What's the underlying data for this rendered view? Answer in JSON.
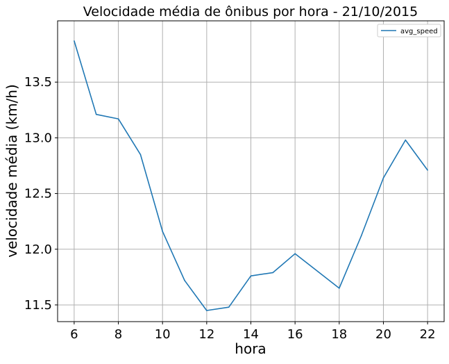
{
  "chart_data": {
    "type": "line",
    "title": "Velocidade média de ônibus por hora - 21/10/2015",
    "xlabel": "hora",
    "ylabel": "velocidade média (km/h)",
    "xlim": [
      5.25,
      22.75
    ],
    "ylim": [
      11.35,
      14.05
    ],
    "xticks": [
      6,
      8,
      10,
      12,
      14,
      16,
      18,
      20,
      22
    ],
    "xtick_labels": [
      "6",
      "8",
      "10",
      "12",
      "14",
      "16",
      "18",
      "20",
      "22"
    ],
    "yticks": [
      11.5,
      12.0,
      12.5,
      13.0,
      13.5
    ],
    "ytick_labels": [
      "11.5",
      "12.0",
      "12.5",
      "13.0",
      "13.5"
    ],
    "grid": true,
    "legend_position": "top-right",
    "series": [
      {
        "name": "avg_speed",
        "color": "#1f77b4",
        "x": [
          6,
          7,
          8,
          9,
          10,
          11,
          12,
          13,
          14,
          15,
          16,
          18,
          19,
          20,
          21,
          22
        ],
        "y": [
          13.87,
          13.21,
          13.17,
          12.85,
          12.16,
          11.72,
          11.45,
          11.48,
          11.76,
          11.79,
          11.96,
          11.65,
          12.12,
          12.64,
          12.98,
          12.71
        ]
      }
    ]
  }
}
